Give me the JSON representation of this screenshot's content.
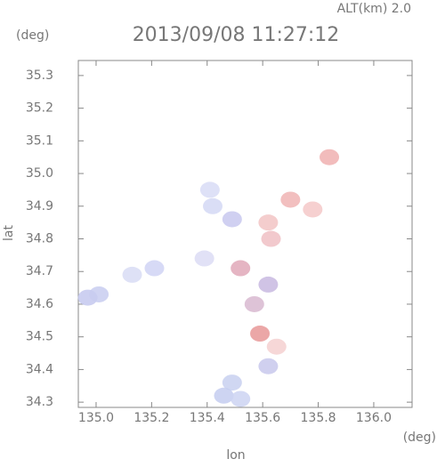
{
  "chart_data": {
    "type": "scatter",
    "title": "2013/09/08 11:27:12",
    "altitude_label": "ALT(km) 2.0",
    "y_unit": "(deg)",
    "x_unit": "(deg)",
    "xlabel": "lon",
    "ylabel": "lat",
    "xlim": [
      134.936,
      136.138
    ],
    "ylim": [
      34.284,
      35.346
    ],
    "xticks": [
      {
        "value": 135,
        "label": "135.0"
      },
      135.2,
      135.4,
      135.6,
      135.8,
      {
        "value": 136,
        "label": "136.0"
      }
    ],
    "yticks": [
      34.3,
      34.4,
      34.5,
      34.6,
      34.7,
      34.8,
      34.9,
      {
        "value": 35,
        "label": "35.0"
      },
      35.1,
      35.2,
      35.3
    ],
    "x": [
      134.97,
      135.01,
      135.21,
      135.41,
      135.42,
      135.49,
      135.62,
      135.7,
      135.63,
      135.84,
      135.78,
      135.52,
      135.62,
      135.57,
      135.59,
      135.65,
      135.62,
      135.49,
      135.46,
      135.52,
      135.39,
      135.13
    ],
    "y": [
      34.62,
      34.63,
      34.71,
      34.95,
      34.9,
      34.86,
      34.85,
      34.92,
      34.8,
      35.05,
      34.89,
      34.71,
      34.66,
      34.6,
      34.51,
      34.47,
      34.41,
      34.36,
      34.32,
      34.31,
      34.74,
      34.69
    ],
    "colors": [
      "#c4c8ee",
      "#c8ccf0",
      "#d0d4f4",
      "#d8dcf6",
      "#d4d8f4",
      "#c8c8ee",
      "#f2c4c4",
      "#f0b4b4",
      "#f0c0c4",
      "#f0b0b0",
      "#f4c8c8",
      "#e0a8b8",
      "#c8b8e0",
      "#d8b8d0",
      "#e89898",
      "#f4d0d0",
      "#c8c8ec",
      "#c8d0f0",
      "#c4ccf0",
      "#ccd4f2",
      "#dcdcf4",
      "#d8dcf4"
    ]
  }
}
